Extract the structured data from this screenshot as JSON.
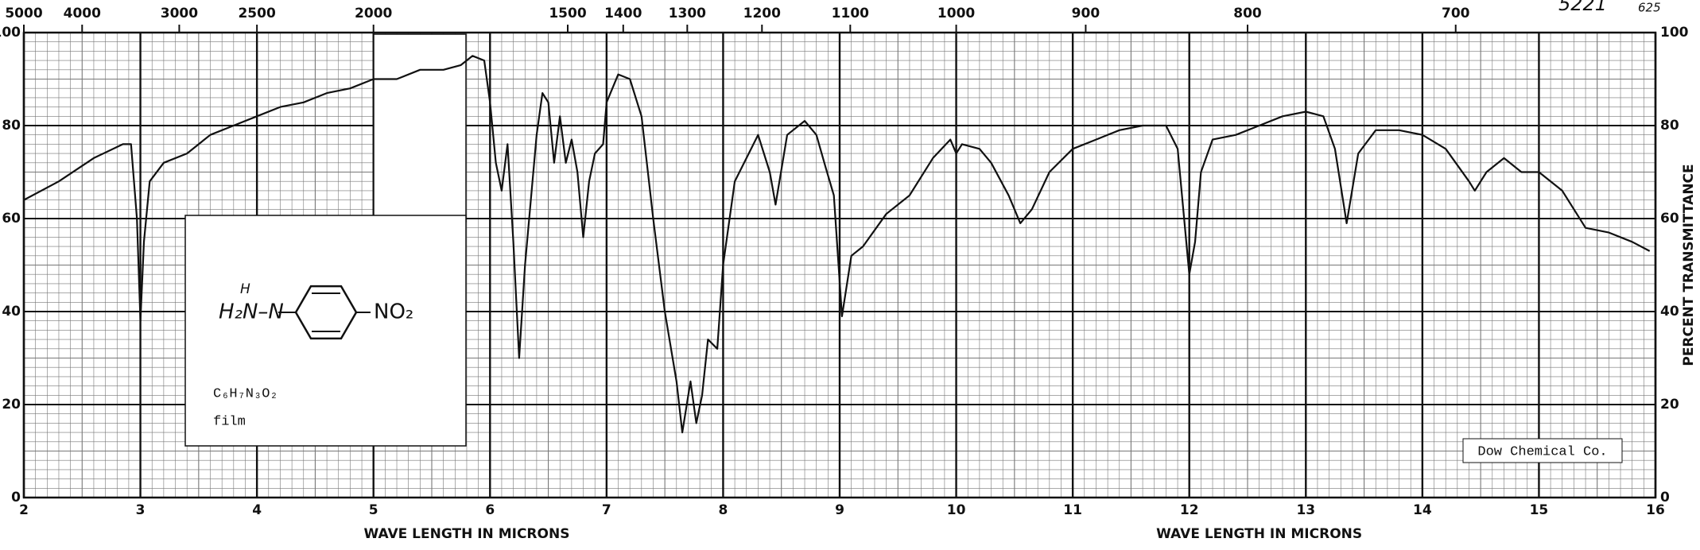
{
  "chart_data": {
    "type": "line",
    "x_label": "WAVE LENGTH IN MICRONS",
    "y_label": "PERCENT TRANSMITTANCE",
    "annotations": {
      "chart_number": "5221",
      "page": "625",
      "source": "Dow Chemical Co."
    },
    "structure": {
      "amine": "H₂N–N",
      "hydrogen": "H",
      "nitro": "NO₂",
      "formula": "C₆H₇N₃O₂",
      "phase": "film"
    },
    "xlim": [
      2,
      16
    ],
    "xticks": [
      2,
      3,
      4,
      5,
      6,
      7,
      8,
      9,
      10,
      11,
      12,
      13,
      14,
      15,
      16
    ],
    "x2ticks": [
      5000,
      4000,
      3000,
      2500,
      2000,
      1500,
      1400,
      1300,
      1200,
      1100,
      1000,
      900,
      800,
      700
    ],
    "ylim": [
      0,
      100
    ],
    "yticks": [
      0,
      20,
      40,
      60,
      80,
      100
    ],
    "grid": true,
    "color": "#111111",
    "x": [
      2.0,
      2.3,
      2.6,
      2.85,
      2.92,
      2.97,
      3.0,
      3.03,
      3.08,
      3.2,
      3.4,
      3.6,
      3.8,
      4.0,
      4.2,
      4.4,
      4.6,
      4.8,
      5.0,
      5.2,
      5.4,
      5.6,
      5.75,
      5.85,
      5.95,
      6.0,
      6.05,
      6.1,
      6.15,
      6.2,
      6.25,
      6.3,
      6.4,
      6.45,
      6.5,
      6.55,
      6.6,
      6.65,
      6.7,
      6.75,
      6.8,
      6.85,
      6.9,
      6.97,
      7.0,
      7.1,
      7.2,
      7.3,
      7.4,
      7.5,
      7.6,
      7.65,
      7.72,
      7.77,
      7.82,
      7.87,
      7.95,
      8.0,
      8.1,
      8.3,
      8.4,
      8.45,
      8.55,
      8.7,
      8.8,
      8.88,
      8.95,
      9.02,
      9.1,
      9.2,
      9.4,
      9.6,
      9.8,
      9.95,
      10.0,
      10.05,
      10.2,
      10.3,
      10.45,
      10.55,
      10.65,
      10.8,
      11.0,
      11.2,
      11.4,
      11.6,
      11.8,
      11.9,
      12.0,
      12.05,
      12.1,
      12.2,
      12.4,
      12.6,
      12.8,
      13.0,
      13.15,
      13.25,
      13.35,
      13.45,
      13.6,
      13.8,
      14.0,
      14.2,
      14.4,
      14.45,
      14.55,
      14.7,
      14.85,
      15.0,
      15.2,
      15.4,
      15.6,
      15.8,
      15.95
    ],
    "values": [
      64,
      68,
      73,
      76,
      76,
      60,
      38,
      55,
      68,
      72,
      74,
      78,
      80,
      82,
      84,
      85,
      87,
      88,
      90,
      90,
      92,
      92,
      93,
      95,
      94,
      85,
      72,
      66,
      76,
      55,
      30,
      50,
      78,
      87,
      85,
      72,
      82,
      72,
      77,
      70,
      56,
      68,
      74,
      76,
      85,
      91,
      90,
      82,
      60,
      40,
      25,
      14,
      25,
      16,
      22,
      34,
      32,
      50,
      68,
      78,
      70,
      63,
      78,
      81,
      78,
      71,
      65,
      39,
      52,
      54,
      61,
      65,
      73,
      77,
      74,
      76,
      75,
      72,
      65,
      59,
      62,
      70,
      75,
      77,
      79,
      80,
      80,
      75,
      48,
      55,
      70,
      77,
      78,
      80,
      82,
      83,
      82,
      75,
      59,
      74,
      79,
      79,
      78,
      75,
      68,
      66,
      70,
      73,
      70,
      70,
      66,
      58,
      57,
      55,
      53
    ]
  }
}
